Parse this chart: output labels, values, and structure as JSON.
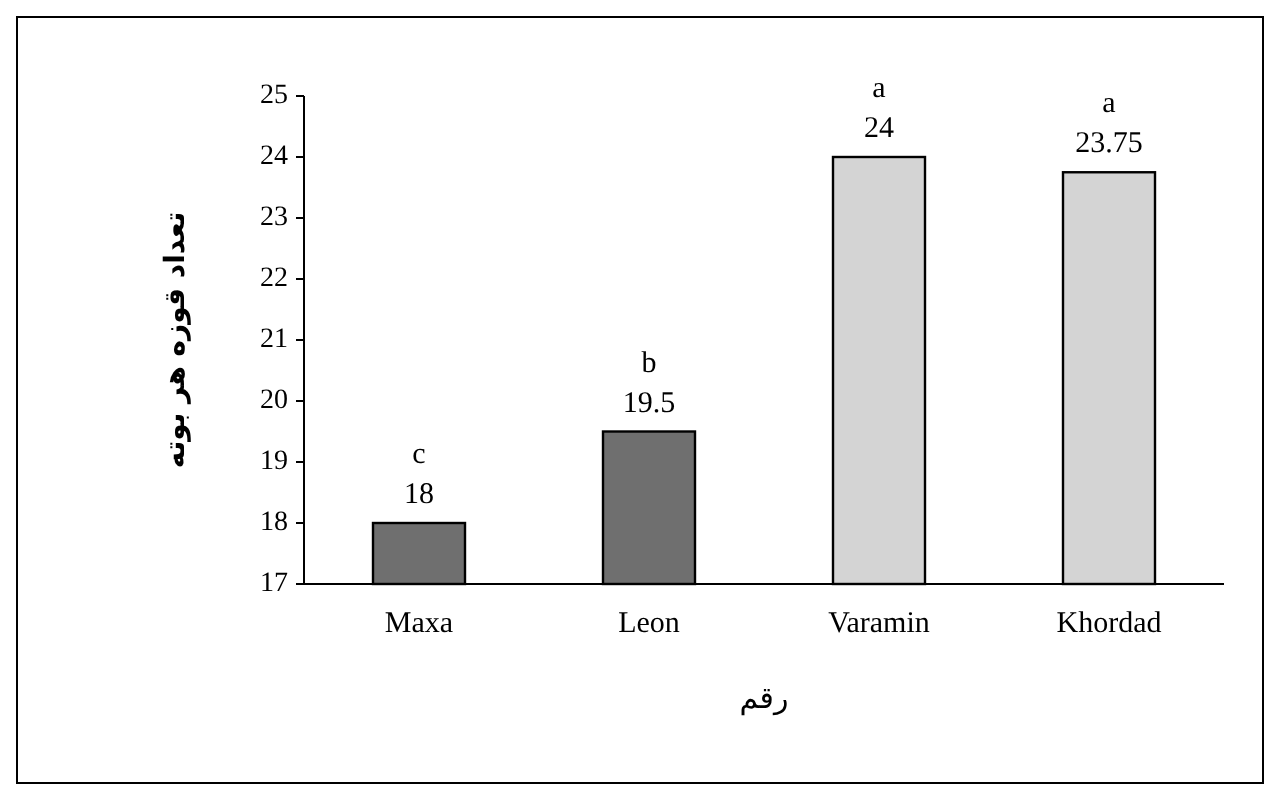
{
  "chart_data": {
    "type": "bar",
    "xlabel": "رقم",
    "ylabel": "تعداد قوزه هر بوته",
    "categories": [
      "Maxa",
      "Leon",
      "Varamin",
      "Khordad"
    ],
    "values": [
      18,
      19.5,
      24,
      23.75
    ],
    "colors": [
      "#6f6f6f",
      "#6f6f6f",
      "#d4d4d4",
      "#d4d4d4"
    ],
    "ylim": [
      17,
      25
    ],
    "yticks": [
      17,
      18,
      19,
      20,
      21,
      22,
      23,
      24,
      25
    ],
    "data_labels": true,
    "annotations": [
      {
        "text": "c",
        "x": "Maxa",
        "y": 18
      },
      {
        "text": "b",
        "x": "Leon",
        "y": 19.5
      },
      {
        "text": "a",
        "x": "Varamin",
        "y": 24
      },
      {
        "text": "a",
        "x": "Khordad",
        "y": 23.75
      }
    ]
  }
}
